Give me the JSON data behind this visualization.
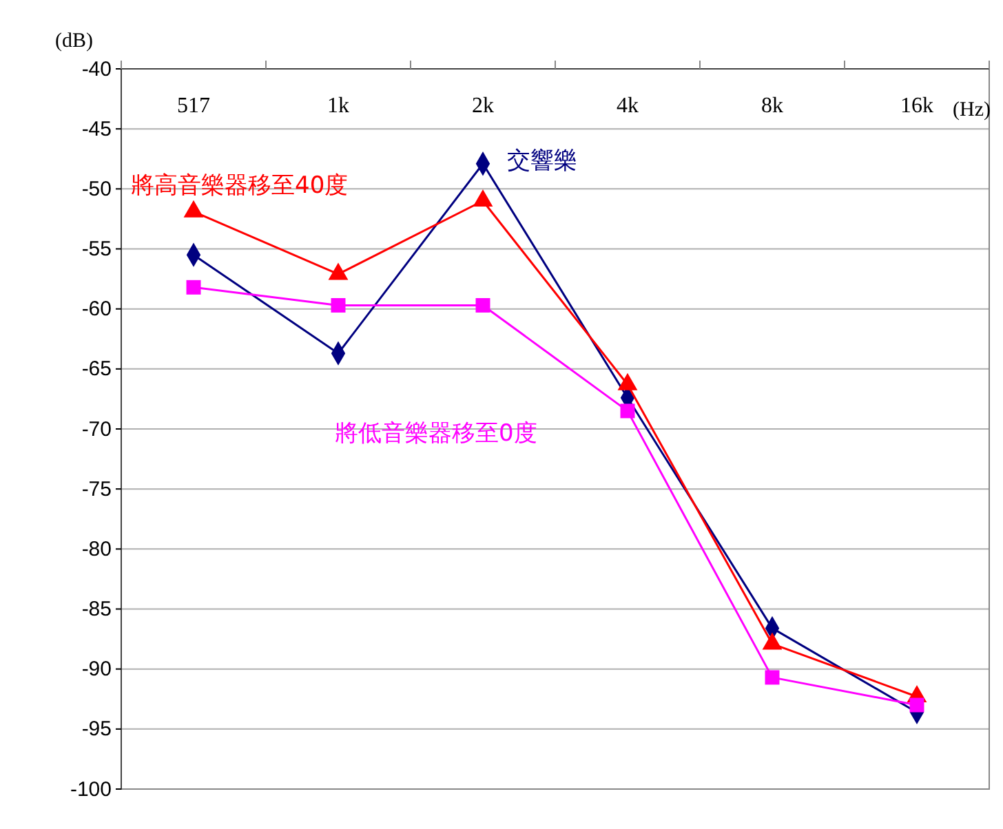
{
  "chart_data": {
    "type": "line",
    "xlabel": "(Hz)",
    "ylabel": "(dB)",
    "categories": [
      "517",
      "1k",
      "2k",
      "4k",
      "8k",
      "16k"
    ],
    "series": [
      {
        "name": "交響樂",
        "color": "#000080",
        "marker": "diamond",
        "values": [
          -55.5,
          -63.7,
          -47.9,
          -67.4,
          -86.6,
          -93.6
        ]
      },
      {
        "name": "將高音樂器移至40度",
        "color": "#ff0000",
        "marker": "triangle",
        "values": [
          -51.9,
          -57.1,
          -51,
          -66.3,
          -87.9,
          -92.3
        ]
      },
      {
        "name": "將低音樂器移至0度",
        "color": "#ff00ff",
        "marker": "square",
        "values": [
          -58.2,
          -59.7,
          -59.7,
          -68.5,
          -90.7,
          -93
        ]
      }
    ],
    "ylim": [
      -100,
      -40
    ],
    "yticks": [
      -100,
      -95,
      -90,
      -85,
      -80,
      -75,
      -70,
      -65,
      -60,
      -55,
      -50,
      -45,
      -40
    ],
    "grid": "y",
    "line_style": "solid"
  }
}
